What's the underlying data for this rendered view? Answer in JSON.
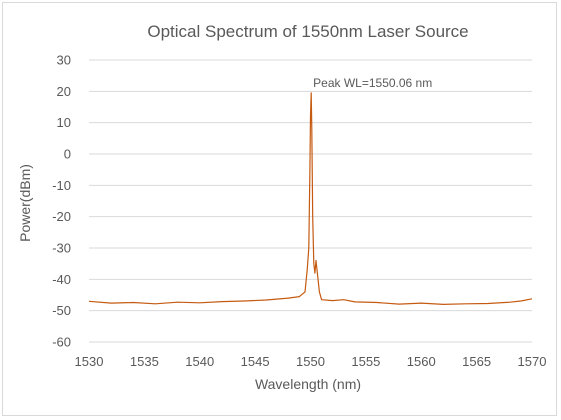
{
  "chart_data": {
    "type": "line",
    "title": "Optical Spectrum of 1550nm Laser Source",
    "xlabel": "Wavelength (nm)",
    "ylabel": "Power(dBm)",
    "xlim": [
      1530,
      1570
    ],
    "ylim": [
      -60,
      30
    ],
    "xticks": [
      1530,
      1535,
      1540,
      1545,
      1550,
      1555,
      1560,
      1565,
      1570
    ],
    "yticks": [
      30,
      20,
      10,
      0,
      -10,
      -20,
      -30,
      -40,
      -50,
      -60
    ],
    "grid": "horizontal",
    "legend": "none",
    "series_color": "#c55a11",
    "annotation": {
      "text": "Peak WL=1550.06 nm",
      "x": 1550.06,
      "y": 19.5
    },
    "series": [
      {
        "x": [
          1530,
          1532,
          1534,
          1536,
          1538,
          1540,
          1542,
          1544,
          1546,
          1548,
          1549,
          1549.5,
          1549.7,
          1549.85,
          1549.95,
          1550.0,
          1550.06,
          1550.12,
          1550.2,
          1550.3,
          1550.4,
          1550.5,
          1550.8,
          1551,
          1552,
          1553,
          1554,
          1556,
          1558,
          1560,
          1562,
          1564,
          1566,
          1568,
          1569,
          1570
        ],
        "y": [
          -47,
          -47.6,
          -47.4,
          -47.8,
          -47.3,
          -47.5,
          -47.1,
          -46.9,
          -46.6,
          -46,
          -45.5,
          -44,
          -37,
          -30,
          -5,
          12,
          19.5,
          8,
          -20,
          -35,
          -38,
          -34,
          -44,
          -46.5,
          -46.8,
          -46.5,
          -47.2,
          -47.4,
          -47.9,
          -47.6,
          -48,
          -47.8,
          -47.7,
          -47.3,
          -46.9,
          -46.2
        ]
      }
    ]
  }
}
